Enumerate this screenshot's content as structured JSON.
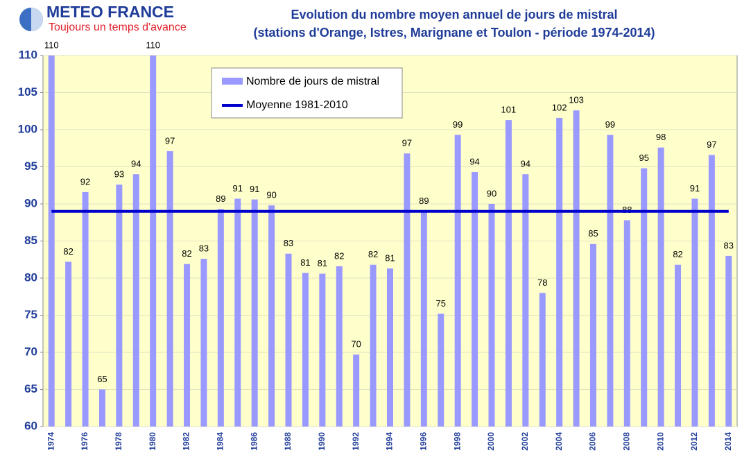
{
  "logo": {
    "name": "METEO FRANCE",
    "tagline": "Toujours un temps d'avance"
  },
  "chart_data": {
    "type": "bar",
    "title": "Evolution du nombre moyen annuel de jours de mistral",
    "subtitle": "(stations d'Orange, Istres, Marignane et Toulon - période 1974-2014)",
    "categories": [
      "1974",
      null,
      "1976",
      null,
      "1978",
      null,
      "1980",
      null,
      "1982",
      null,
      "1984",
      null,
      "1986",
      null,
      "1988",
      null,
      "1990",
      null,
      "1992",
      null,
      "1994",
      null,
      "1996",
      null,
      "1998",
      null,
      "2000",
      null,
      "2002",
      null,
      "2004",
      null,
      "2006",
      null,
      "2008",
      null,
      "2010",
      null,
      "2012",
      null,
      "2014"
    ],
    "series": [
      {
        "name": "Nombre de jours de mistral",
        "color": "#9999ff",
        "values": [
          110,
          82.2,
          91.6,
          65.0,
          92.6,
          94.0,
          110,
          97.1,
          81.9,
          82.6,
          89.3,
          90.7,
          90.6,
          89.8,
          83.3,
          80.7,
          80.6,
          81.6,
          69.7,
          81.8,
          81.3,
          96.8,
          89.0,
          75.2,
          99.3,
          94.3,
          90.0,
          101.3,
          94.0,
          78.0,
          101.6,
          102.6,
          84.6,
          99.3,
          87.8,
          94.8,
          97.6,
          81.8,
          90.7,
          96.6,
          83.0
        ],
        "value_labels": [
          "110",
          "82",
          "92",
          "65",
          "93",
          "94",
          "110",
          "97",
          "82",
          "83",
          "89",
          "91",
          "91",
          "90",
          "83",
          "81",
          "81",
          "82",
          "70",
          "82",
          "81",
          "97",
          "89",
          "75",
          "99",
          "94",
          "90",
          "101",
          "94",
          "78",
          "102",
          "103",
          "85",
          "99",
          "88",
          "95",
          "98",
          "82",
          "91",
          "97",
          "83"
        ]
      }
    ],
    "reference_line": {
      "name": "Moyenne 1981-2010",
      "color": "#0000cc",
      "value": 89.0
    },
    "ylim": [
      60,
      110
    ],
    "yticks": [
      60,
      65,
      70,
      75,
      80,
      85,
      90,
      95,
      100,
      105,
      110
    ],
    "grid": true
  }
}
